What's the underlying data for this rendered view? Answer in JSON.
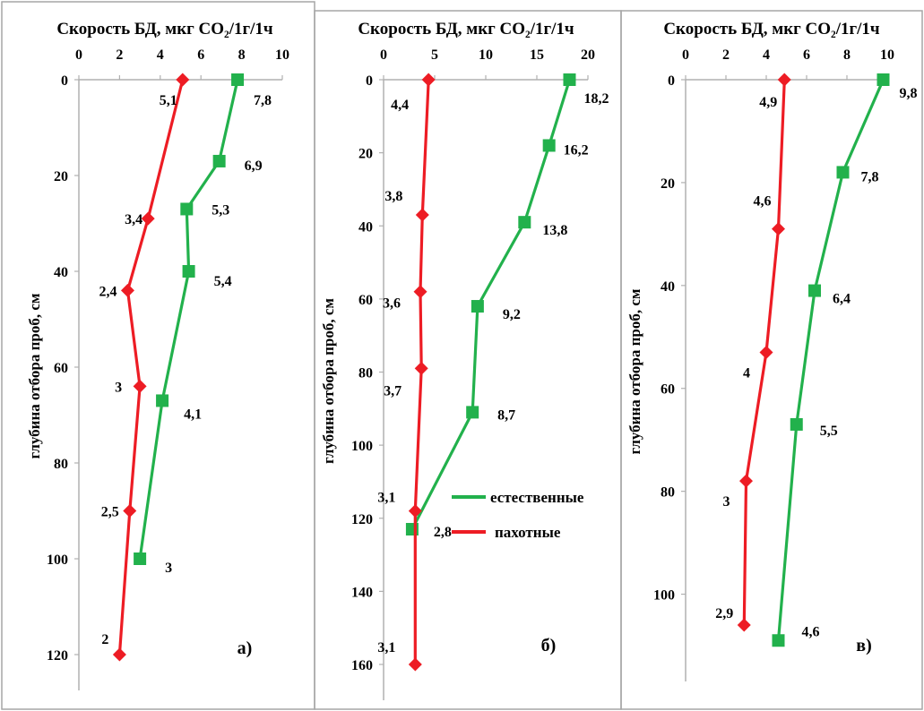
{
  "colors": {
    "natural": "#22b14c",
    "arable": "#ed1c24",
    "axis": "#b0b0b0",
    "border": "#a6a6a6"
  },
  "legend": {
    "natural": "естественные",
    "arable": "пахотные"
  },
  "chart_data": [
    {
      "type": "line",
      "panel_label": "а)",
      "title": "Скорость БД, мкг СО₂/1г/1ч",
      "xlabel": "",
      "ylabel": "глубина отбора проб, см",
      "xlim": [
        0,
        10
      ],
      "ylim": [
        0,
        120
      ],
      "x_ticks": [
        0,
        2,
        4,
        6,
        8,
        10
      ],
      "y_ticks": [
        0,
        20,
        40,
        60,
        80,
        100,
        120
      ],
      "y_inverted": true,
      "series": [
        {
          "key": "arable",
          "points": [
            {
              "x": 5.1,
              "y": 0,
              "label": "5,1"
            },
            {
              "x": 3.4,
              "y": 29,
              "label": "3,4"
            },
            {
              "x": 2.4,
              "y": 44,
              "label": "2,4"
            },
            {
              "x": 3,
              "y": 64,
              "label": "3"
            },
            {
              "x": 2.5,
              "y": 90,
              "label": "2,5"
            },
            {
              "x": 2,
              "y": 120,
              "label": "2"
            }
          ]
        },
        {
          "key": "natural",
          "points": [
            {
              "x": 7.8,
              "y": 0,
              "label": "7,8"
            },
            {
              "x": 6.9,
              "y": 17,
              "label": "6,9"
            },
            {
              "x": 5.3,
              "y": 27,
              "label": "5,3"
            },
            {
              "x": 5.4,
              "y": 40,
              "label": "5,4"
            },
            {
              "x": 4.1,
              "y": 67,
              "label": "4,1"
            },
            {
              "x": 3,
              "y": 100,
              "label": "3"
            }
          ]
        }
      ]
    },
    {
      "type": "line",
      "panel_label": "б)",
      "title": "Скорость БД, мкг СО₂/1г/1ч",
      "xlabel": "",
      "ylabel": "глубина отбора проб, см",
      "xlim": [
        0,
        20
      ],
      "ylim": [
        0,
        160
      ],
      "x_ticks": [
        0,
        5,
        10,
        15,
        20
      ],
      "y_ticks": [
        0,
        20,
        40,
        60,
        80,
        100,
        120,
        140,
        160
      ],
      "y_inverted": true,
      "legend_position": "center-right",
      "series": [
        {
          "key": "arable",
          "points": [
            {
              "x": 4.4,
              "y": 0,
              "label": "4,4"
            },
            {
              "x": 3.8,
              "y": 37,
              "label": "3,8"
            },
            {
              "x": 3.6,
              "y": 58,
              "label": "3,6"
            },
            {
              "x": 3.7,
              "y": 79,
              "label": "3,7"
            },
            {
              "x": 3.1,
              "y": 118,
              "label": "3,1"
            },
            {
              "x": 3.1,
              "y": 160,
              "label": "3,1"
            }
          ]
        },
        {
          "key": "natural",
          "points": [
            {
              "x": 18.2,
              "y": 0,
              "label": "18,2"
            },
            {
              "x": 16.2,
              "y": 18,
              "label": "16,2"
            },
            {
              "x": 13.8,
              "y": 39,
              "label": "13,8"
            },
            {
              "x": 9.2,
              "y": 62,
              "label": "9,2"
            },
            {
              "x": 8.7,
              "y": 91,
              "label": "8,7"
            },
            {
              "x": 2.8,
              "y": 123,
              "label": "2,8"
            }
          ]
        }
      ]
    },
    {
      "type": "line",
      "panel_label": "в)",
      "title": "Скорость БД, мкг СО₂/1г/1ч",
      "xlabel": "",
      "ylabel": "глубина отбора проб, см",
      "xlim": [
        0,
        10
      ],
      "ylim": [
        0,
        110
      ],
      "x_ticks": [
        0,
        2,
        4,
        6,
        8,
        10
      ],
      "y_ticks": [
        0,
        20,
        40,
        60,
        80,
        100
      ],
      "y_inverted": true,
      "series": [
        {
          "key": "arable",
          "points": [
            {
              "x": 4.9,
              "y": 0,
              "label": "4,9"
            },
            {
              "x": 4.6,
              "y": 29,
              "label": "4,6"
            },
            {
              "x": 4,
              "y": 53,
              "label": "4"
            },
            {
              "x": 3,
              "y": 78,
              "label": "3"
            },
            {
              "x": 2.9,
              "y": 106,
              "label": "2,9"
            }
          ]
        },
        {
          "key": "natural",
          "points": [
            {
              "x": 9.8,
              "y": 0,
              "label": "9,8"
            },
            {
              "x": 7.8,
              "y": 18,
              "label": "7,8"
            },
            {
              "x": 6.4,
              "y": 41,
              "label": "6,4"
            },
            {
              "x": 5.5,
              "y": 67,
              "label": "5,5"
            },
            {
              "x": 4.6,
              "y": 109,
              "label": "4,6"
            }
          ]
        }
      ]
    }
  ]
}
